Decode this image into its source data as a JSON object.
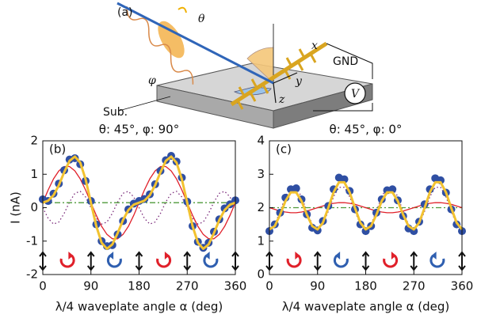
{
  "schematic": {
    "label": "(a)",
    "theta": "θ",
    "x": "x",
    "gnd": "GND",
    "phi": "φ",
    "y": "y",
    "z": "z",
    "v": "V",
    "sub": "Sub."
  },
  "chart_data": [
    {
      "type": "line",
      "title": "θ: 45°, φ: 90°",
      "panel": "(b)",
      "xlabel": "λ/4 waveplate angle α (deg)",
      "ylabel": "I (nA)",
      "xlim": [
        0,
        360
      ],
      "xticks": [
        0,
        90,
        180,
        270,
        360
      ],
      "ylim": [
        -2,
        2
      ],
      "yticks": [
        -2,
        -1,
        0,
        1,
        2
      ],
      "x": [
        0,
        10,
        20,
        30,
        40,
        50,
        60,
        70,
        80,
        90,
        100,
        110,
        120,
        130,
        140,
        150,
        160,
        170,
        180,
        190,
        200,
        210,
        220,
        230,
        240,
        250,
        260,
        270,
        280,
        290,
        300,
        310,
        320,
        330,
        340,
        350,
        360
      ],
      "series": [
        {
          "color": "#7a2a7a",
          "style": "dotted",
          "values": [
            0,
            -0.32,
            -0.49,
            -0.43,
            -0.17,
            0.17,
            0.43,
            0.49,
            0.32,
            0,
            -0.32,
            -0.49,
            -0.43,
            -0.17,
            0.17,
            0.43,
            0.49,
            0.32,
            0,
            -0.32,
            -0.49,
            -0.43,
            -0.17,
            0.17,
            0.43,
            0.49,
            0.32,
            0,
            -0.32,
            -0.49,
            -0.43,
            -0.17,
            0.17,
            0.43,
            0.49,
            0.32,
            0
          ]
        },
        {
          "color": "#4f9a3a",
          "style": "dashdot",
          "values": [
            0.15,
            0.15,
            0.15,
            0.15,
            0.15,
            0.15,
            0.15,
            0.15,
            0.15,
            0.15,
            0.15,
            0.15,
            0.15,
            0.15,
            0.15,
            0.15,
            0.15,
            0.15,
            0.15,
            0.15,
            0.15,
            0.15,
            0.15,
            0.15,
            0.15,
            0.15,
            0.15,
            0.15,
            0.15,
            0.15,
            0.15,
            0.15,
            0.15,
            0.15,
            0.15,
            0.15,
            0.15
          ]
        },
        {
          "color": "#e0202a",
          "style": "solid",
          "values": [
            0.15,
            0.53,
            0.86,
            1.1,
            1.23,
            1.23,
            1.1,
            0.86,
            0.53,
            0.15,
            -0.23,
            -0.56,
            -0.8,
            -0.93,
            -0.93,
            -0.8,
            -0.56,
            -0.23,
            0.15,
            0.53,
            0.86,
            1.1,
            1.23,
            1.23,
            1.1,
            0.86,
            0.53,
            0.15,
            -0.23,
            -0.56,
            -0.8,
            -0.93,
            -0.93,
            -0.8,
            -0.56,
            -0.23,
            0.15
          ]
        },
        {
          "color": "#2f4fa3",
          "style": "markers",
          "values": [
            0.25,
            0.2,
            0.42,
            0.72,
            1.12,
            1.44,
            1.48,
            1.3,
            0.8,
            0.2,
            -0.5,
            -1.0,
            -1.15,
            -1.12,
            -0.8,
            -0.4,
            -0.05,
            0.12,
            0.2,
            0.26,
            0.4,
            0.7,
            1.1,
            1.42,
            1.55,
            1.38,
            0.9,
            0.18,
            -0.55,
            -1.02,
            -1.2,
            -1.05,
            -0.72,
            -0.35,
            -0.02,
            0.1,
            0.22
          ]
        },
        {
          "color": "#f2c230",
          "style": "thick",
          "values": [
            0.15,
            0.21,
            0.37,
            0.67,
            1.06,
            1.4,
            1.53,
            1.35,
            0.85,
            0.15,
            -0.55,
            -1.05,
            -1.23,
            -1.1,
            -0.76,
            -0.37,
            -0.07,
            0.09,
            0.15,
            0.21,
            0.37,
            0.67,
            1.06,
            1.4,
            1.53,
            1.35,
            0.85,
            0.15,
            -0.55,
            -1.05,
            -1.23,
            -1.1,
            -0.76,
            -0.37,
            -0.07,
            0.09,
            0.15
          ]
        }
      ]
    },
    {
      "type": "line",
      "title": "θ: 45°, φ: 0°",
      "panel": "(c)",
      "xlabel": "λ/4 waveplate angle α (deg)",
      "xlim": [
        0,
        360
      ],
      "xticks": [
        0,
        90,
        180,
        270,
        360
      ],
      "ylim": [
        0,
        4
      ],
      "yticks": [
        0,
        1,
        2,
        3,
        4
      ],
      "x": [
        0,
        10,
        20,
        30,
        40,
        50,
        60,
        70,
        80,
        90,
        100,
        110,
        120,
        130,
        140,
        150,
        160,
        170,
        180,
        190,
        200,
        210,
        220,
        230,
        240,
        250,
        260,
        270,
        280,
        290,
        300,
        310,
        320,
        330,
        340,
        350,
        360
      ],
      "series": [
        {
          "color": "#7a2a7a",
          "style": "dotted",
          "values": [
            1.35,
            1.5,
            1.89,
            2.33,
            2.61,
            2.61,
            2.33,
            1.89,
            1.5,
            1.35,
            1.5,
            1.89,
            2.33,
            2.61,
            2.61,
            2.33,
            1.89,
            1.5,
            1.35,
            1.5,
            1.89,
            2.33,
            2.61,
            2.61,
            2.33,
            1.89,
            1.5,
            1.35,
            1.5,
            1.89,
            2.33,
            2.61,
            2.61,
            2.33,
            1.89,
            1.5,
            1.35
          ]
        },
        {
          "color": "#4f9a3a",
          "style": "dashdot",
          "values": [
            2.0,
            2.0,
            2.0,
            2.0,
            2.0,
            2.0,
            2.0,
            2.0,
            2.0,
            2.0,
            2.0,
            2.0,
            2.0,
            2.0,
            2.0,
            2.0,
            2.0,
            2.0,
            2.0,
            2.0,
            2.0,
            2.0,
            2.0,
            2.0,
            2.0,
            2.0,
            2.0,
            2.0,
            2.0,
            2.0,
            2.0,
            2.0,
            2.0,
            2.0,
            2.0,
            2.0,
            2.0
          ]
        },
        {
          "color": "#e0202a",
          "style": "solid",
          "values": [
            2.0,
            1.95,
            1.9,
            1.87,
            1.85,
            1.85,
            1.87,
            1.9,
            1.95,
            2.0,
            2.05,
            2.1,
            2.13,
            2.15,
            2.15,
            2.13,
            2.1,
            2.05,
            2.0,
            1.95,
            1.9,
            1.87,
            1.85,
            1.85,
            1.87,
            1.9,
            1.95,
            2.0,
            2.05,
            2.1,
            2.13,
            2.15,
            2.15,
            2.13,
            2.1,
            2.05,
            2.0
          ]
        },
        {
          "color": "#2f4fa3",
          "style": "markers",
          "values": [
            1.3,
            1.5,
            1.85,
            2.3,
            2.55,
            2.58,
            2.25,
            1.8,
            1.4,
            1.32,
            1.6,
            2.05,
            2.55,
            2.9,
            2.85,
            2.5,
            1.95,
            1.5,
            1.3,
            1.45,
            1.85,
            2.25,
            2.52,
            2.55,
            2.22,
            1.75,
            1.38,
            1.3,
            1.58,
            2.1,
            2.55,
            2.88,
            2.82,
            2.45,
            1.95,
            1.5,
            1.3
          ]
        },
        {
          "color": "#f2c230",
          "style": "thick",
          "values": [
            1.35,
            1.45,
            1.79,
            2.2,
            2.46,
            2.46,
            2.2,
            1.79,
            1.45,
            1.35,
            1.55,
            1.99,
            2.46,
            2.76,
            2.76,
            2.46,
            1.99,
            1.55,
            1.35,
            1.45,
            1.79,
            2.2,
            2.46,
            2.46,
            2.2,
            1.79,
            1.45,
            1.35,
            1.55,
            1.99,
            2.46,
            2.76,
            2.76,
            2.46,
            1.99,
            1.55,
            1.35
          ]
        }
      ]
    }
  ]
}
